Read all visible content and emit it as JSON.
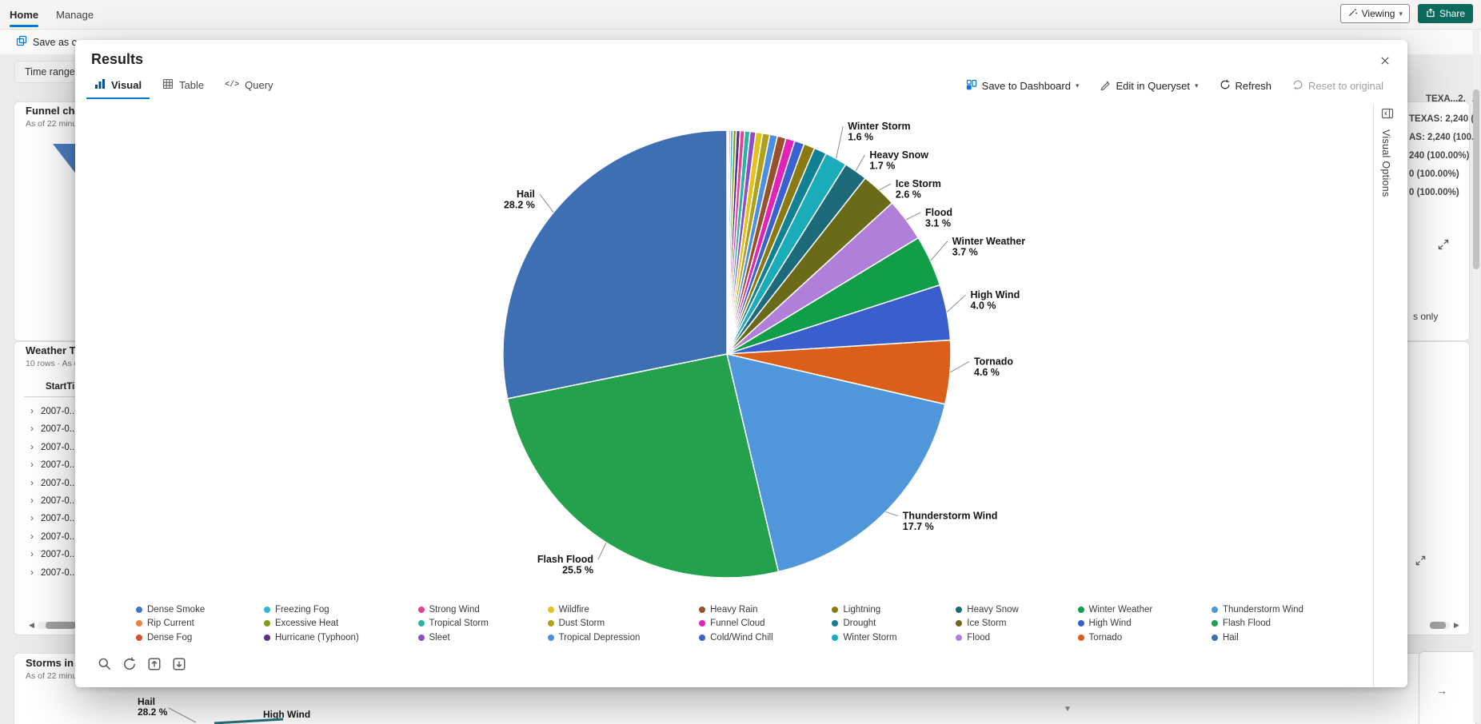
{
  "topbar": {
    "tabs": [
      "Home",
      "Manage"
    ],
    "viewing_label": "Viewing",
    "share_label": "Share"
  },
  "toolbar": {
    "save_as_copy_label": "Save as co",
    "time_range_label": "Time range:"
  },
  "icons": {
    "chevron_down": "▾",
    "row_chevron": "›",
    "scroll_left": "◀",
    "scroll_right": "▶",
    "sort_up": "▲",
    "scroll_down": "▼",
    "query_glyph": "</>",
    "arrow_right": "→"
  },
  "panels": {
    "funnel": {
      "title": "Funnel cha...",
      "subtitle": "As of 22 minut..."
    },
    "weather": {
      "title": "Weather Ta...",
      "subtitle": "10 rows · As of ...",
      "column_header": "StartTi...",
      "rows": [
        "2007-0...",
        "2007-0...",
        "2007-0...",
        "2007-0...",
        "2007-0...",
        "2007-0...",
        "2007-0...",
        "2007-0...",
        "2007-0...",
        "2007-0..."
      ]
    },
    "storms": {
      "title": "Storms in T...",
      "subtitle": "As of 22 minut...",
      "hail_name": "Hail",
      "hail_value": "28.2 %",
      "high_wind_label": "High Wind"
    }
  },
  "right_fragments": {
    "header": "TEXA...2.",
    "lines": [
      "TEXAS: 2,240 (",
      "AS: 2,240 (100.0",
      "240 (100.00%)",
      "0 (100.00%)",
      "0 (100.00%)"
    ],
    "s_only": "s only"
  },
  "modal": {
    "title": "Results",
    "tabs": [
      {
        "label": "Visual"
      },
      {
        "label": "Table"
      },
      {
        "label": "Query"
      }
    ],
    "actions": {
      "save_to_dashboard": "Save to Dashboard",
      "edit_in_queryset": "Edit in Queryset",
      "refresh": "Refresh",
      "reset_to_original": "Reset to original"
    },
    "visual_options_label": "Visual Options"
  },
  "colors": {
    "accent": "#0078d4",
    "share_button": "#0b6a5e",
    "label_line": "#8c8c8c"
  },
  "chart_data": {
    "type": "pie",
    "title": "",
    "legend_position": "bottom",
    "legend_layout": "3 rows x 9 columns, column-major, ascending by value",
    "label_threshold_pct": 1.5,
    "slices": [
      {
        "name": "Dense Smoke",
        "value": 0.05,
        "color": "#4272d7"
      },
      {
        "name": "Rip Current",
        "value": 0.1,
        "color": "#e8853d"
      },
      {
        "name": "Dense Fog",
        "value": 0.12,
        "color": "#d9512c"
      },
      {
        "name": "Freezing Fog",
        "value": 0.18,
        "color": "#29b6d8"
      },
      {
        "name": "Excessive Heat",
        "value": 0.22,
        "color": "#7aa116"
      },
      {
        "name": "Hurricane (Typhoon)",
        "value": 0.28,
        "color": "#5c2d91"
      },
      {
        "name": "Strong Wind",
        "value": 0.32,
        "color": "#e83e95"
      },
      {
        "name": "Tropical Storm",
        "value": 0.38,
        "color": "#2bb5a0"
      },
      {
        "name": "Sleet",
        "value": 0.42,
        "color": "#8f4fc4"
      },
      {
        "name": "Wildfire",
        "value": 0.48,
        "color": "#e3c21e"
      },
      {
        "name": "Dust Storm",
        "value": 0.52,
        "color": "#b0a11b"
      },
      {
        "name": "Tropical Depression",
        "value": 0.56,
        "color": "#4a8fe0"
      },
      {
        "name": "Heavy Rain",
        "value": 0.62,
        "color": "#99512b"
      },
      {
        "name": "Funnel Cloud",
        "value": 0.66,
        "color": "#e322b7"
      },
      {
        "name": "Cold/Wind Chill",
        "value": 0.7,
        "color": "#3b61d1"
      },
      {
        "name": "Lightning",
        "value": 0.8,
        "color": "#8a7a12"
      },
      {
        "name": "Drought",
        "value": 0.9,
        "color": "#128094"
      },
      {
        "name": "Winter Storm",
        "value": 1.6,
        "color": "#1aacb8"
      },
      {
        "name": "Heavy Snow",
        "value": 1.7,
        "color": "#1d6a7a"
      },
      {
        "name": "Ice Storm",
        "value": 2.6,
        "color": "#6a6a18"
      },
      {
        "name": "Flood",
        "value": 3.1,
        "color": "#b07fd9"
      },
      {
        "name": "Winter Weather",
        "value": 3.7,
        "color": "#109e49"
      },
      {
        "name": "High Wind",
        "value": 4.0,
        "color": "#3a5fcc"
      },
      {
        "name": "Tornado",
        "value": 4.6,
        "color": "#d95f1a"
      },
      {
        "name": "Thunderstorm Wind",
        "value": 17.7,
        "color": "#4f97da"
      },
      {
        "name": "Flash Flood",
        "value": 25.5,
        "color": "#23a14d"
      },
      {
        "name": "Hail",
        "value": 28.2,
        "color": "#3d6fb2"
      }
    ]
  }
}
